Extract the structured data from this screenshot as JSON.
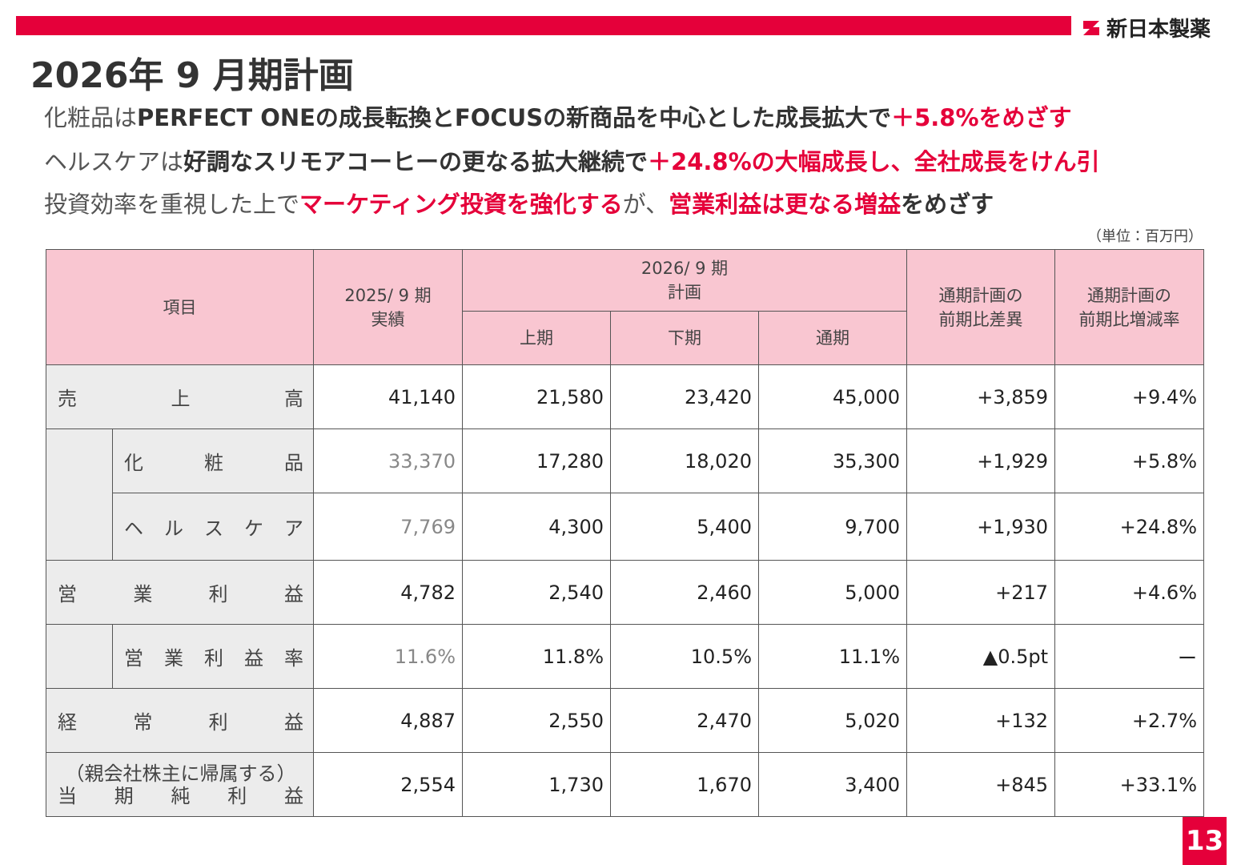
{
  "header": {
    "logo": "新日本製薬",
    "title": "2026年 9 月期計画"
  },
  "bullets": [
    [
      {
        "text": "化粧品は",
        "style": "normal"
      },
      {
        "text": "PERFECT ONEの成長転換とFOCUSの新商品を中心とした成長拡大で",
        "style": "bold"
      },
      {
        "text": "＋5.8%をめざす",
        "style": "accent"
      }
    ],
    [
      {
        "text": "ヘルスケアは",
        "style": "normal"
      },
      {
        "text": "好調なスリモアコーヒーの更なる拡大継続で",
        "style": "bold"
      },
      {
        "text": "＋24.8%の大幅成長し、全社成長をけん引",
        "style": "accent"
      }
    ],
    [
      {
        "text": "投資効率を重視した上で",
        "style": "normal"
      },
      {
        "text": "マーケティング投資を強化する",
        "style": "accent"
      },
      {
        "text": "が、",
        "style": "normal"
      },
      {
        "text": "営業利益は更なる増益",
        "style": "accent"
      },
      {
        "text": "をめざす",
        "style": "bold"
      }
    ]
  ],
  "table": {
    "unit": "（単位：百万円）",
    "head": {
      "item": "項目",
      "prev": [
        "2025/ 9 期",
        "実績"
      ],
      "plan": [
        "2026/ 9 期",
        "計画"
      ],
      "plan_cols": [
        "上期",
        "下期",
        "通期"
      ],
      "diff": [
        "通期計画の",
        "前期比差異"
      ],
      "rate": [
        "通期計画の",
        "前期比増減率"
      ]
    },
    "rows": [
      {
        "label": "売上高",
        "sub": false,
        "values": [
          "41,140",
          "21,580",
          "23,420",
          "45,000",
          "+3,859",
          "+9.4%"
        ]
      },
      {
        "label": "化粧品",
        "sub": true,
        "values": [
          "33,370",
          "17,280",
          "18,020",
          "35,300",
          "+1,929",
          "+5.8%"
        ]
      },
      {
        "label": "ヘルスケア",
        "sub": true,
        "values": [
          "7,769",
          "4,300",
          "5,400",
          "9,700",
          "+1,930",
          "+24.8%"
        ]
      },
      {
        "label": "営業利益",
        "sub": false,
        "values": [
          "4,782",
          "2,540",
          "2,460",
          "5,000",
          "+217",
          "+4.6%"
        ]
      },
      {
        "label": "営業利益率",
        "sub": true,
        "values": [
          "11.6%",
          "11.8%",
          "10.5%",
          "11.1%",
          "▲0.5pt",
          "ー"
        ]
      },
      {
        "label": "経常利益",
        "sub": false,
        "values": [
          "4,887",
          "2,550",
          "2,470",
          "5,020",
          "+132",
          "+2.7%"
        ]
      },
      {
        "note": "（親会社株主に帰属する）",
        "label": "当期純利益",
        "sub": false,
        "values": [
          "2,554",
          "1,730",
          "1,670",
          "3,400",
          "+845",
          "+33.1%"
        ]
      }
    ]
  },
  "page_number": "13"
}
